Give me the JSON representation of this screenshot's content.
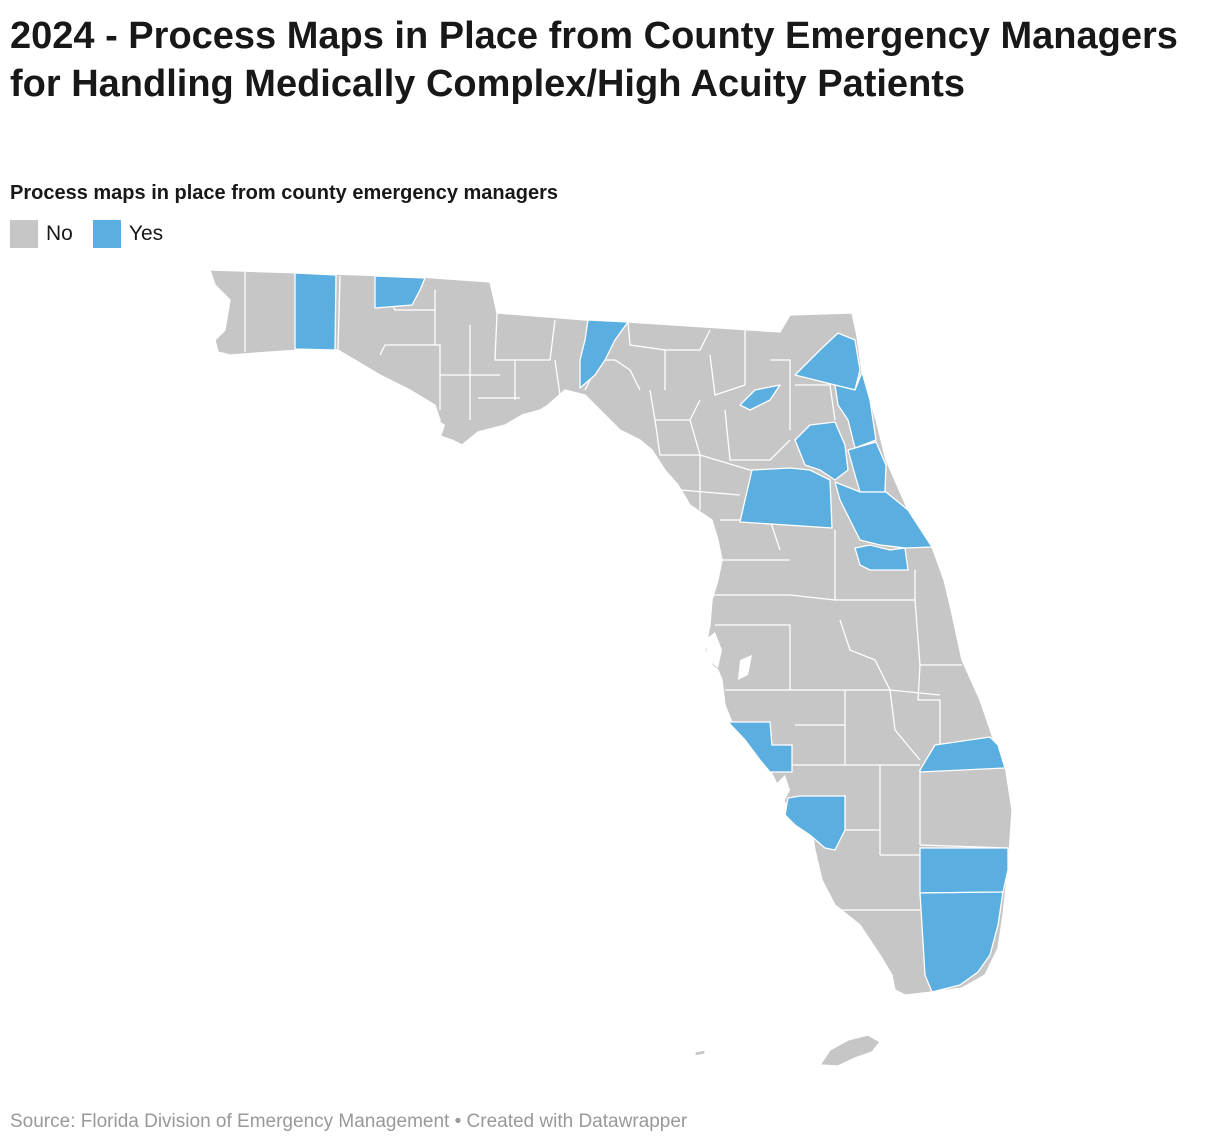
{
  "header": {
    "title": "2024 - Process Maps in Place from County Emergency Managers for Handling Medically Complex/High Acuity Patients",
    "subtitle": "Process maps in place from county emergency managers"
  },
  "legend": {
    "items": [
      {
        "label": "No",
        "color": "#c6c6c6"
      },
      {
        "label": "Yes",
        "color": "#5aaee0"
      }
    ]
  },
  "map": {
    "region": "Florida",
    "unit": "county",
    "colors": {
      "no": "#c6c6c6",
      "yes": "#5aaee0",
      "border": "#ffffff"
    }
  },
  "footer": {
    "source": "Source: Florida Division of Emergency Management • Created with Datawrapper"
  }
}
